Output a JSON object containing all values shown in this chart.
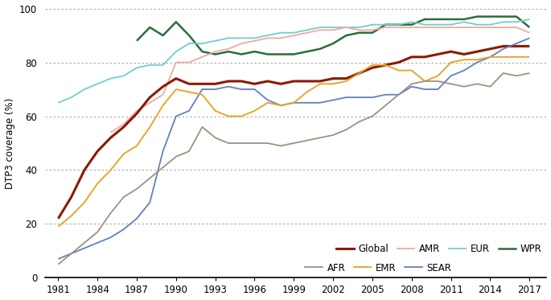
{
  "years": [
    1980,
    1981,
    1982,
    1983,
    1984,
    1985,
    1986,
    1987,
    1988,
    1989,
    1990,
    1991,
    1992,
    1993,
    1994,
    1995,
    1996,
    1997,
    1998,
    1999,
    2000,
    2001,
    2002,
    2003,
    2004,
    2005,
    2006,
    2007,
    2008,
    2009,
    2010,
    2011,
    2012,
    2013,
    2014,
    2015,
    2016,
    2017,
    2018
  ],
  "Global": [
    null,
    22,
    30,
    40,
    47,
    52,
    56,
    61,
    67,
    71,
    74,
    72,
    72,
    72,
    73,
    73,
    72,
    73,
    72,
    73,
    73,
    73,
    74,
    74,
    76,
    78,
    79,
    80,
    82,
    82,
    83,
    84,
    83,
    84,
    85,
    86,
    86,
    86,
    null
  ],
  "AMR": [
    null,
    null,
    null,
    null,
    null,
    54,
    57,
    62,
    65,
    68,
    80,
    80,
    82,
    84,
    85,
    87,
    88,
    89,
    89,
    90,
    91,
    92,
    92,
    93,
    92,
    92,
    93,
    93,
    93,
    93,
    93,
    93,
    93,
    93,
    93,
    93,
    93,
    91,
    null
  ],
  "EUR": [
    null,
    65,
    67,
    70,
    72,
    74,
    75,
    78,
    79,
    79,
    84,
    87,
    87,
    88,
    89,
    89,
    89,
    90,
    91,
    91,
    92,
    93,
    93,
    93,
    93,
    94,
    94,
    94,
    95,
    94,
    94,
    94,
    95,
    94,
    94,
    95,
    95,
    96,
    null
  ],
  "WPR": [
    null,
    null,
    null,
    null,
    null,
    null,
    null,
    88,
    93,
    90,
    95,
    90,
    84,
    83,
    84,
    83,
    84,
    83,
    83,
    83,
    84,
    85,
    87,
    90,
    91,
    91,
    94,
    94,
    94,
    96,
    96,
    96,
    96,
    97,
    97,
    97,
    97,
    93,
    null
  ],
  "AFR": [
    null,
    5,
    9,
    13,
    17,
    24,
    30,
    33,
    37,
    41,
    45,
    47,
    56,
    52,
    50,
    50,
    50,
    50,
    49,
    50,
    51,
    52,
    53,
    55,
    58,
    60,
    64,
    68,
    72,
    73,
    73,
    72,
    71,
    72,
    71,
    76,
    75,
    76,
    null
  ],
  "EMR": [
    null,
    19,
    23,
    28,
    35,
    40,
    46,
    49,
    56,
    64,
    70,
    69,
    68,
    62,
    60,
    60,
    62,
    65,
    64,
    65,
    69,
    72,
    72,
    73,
    76,
    79,
    79,
    77,
    77,
    73,
    75,
    80,
    81,
    81,
    82,
    82,
    82,
    82,
    null
  ],
  "SEAR": [
    null,
    7,
    9,
    11,
    13,
    15,
    18,
    22,
    28,
    47,
    60,
    62,
    70,
    70,
    71,
    70,
    70,
    66,
    64,
    65,
    65,
    65,
    66,
    67,
    67,
    67,
    68,
    68,
    71,
    70,
    70,
    75,
    77,
    80,
    82,
    85,
    87,
    89,
    null
  ],
  "colors": {
    "Global": "#8B1A00",
    "AMR": "#F2A8A0",
    "EUR": "#6ECECE",
    "WPR": "#2A6E3A",
    "AFR": "#A09080",
    "EMR": "#E8A020",
    "SEAR": "#6080C0"
  },
  "linewidths": {
    "Global": 2.2,
    "AMR": 1.3,
    "EUR": 1.3,
    "WPR": 1.8,
    "AFR": 1.3,
    "EMR": 1.3,
    "SEAR": 1.3
  },
  "ylabel": "DTP3 coverage (%)",
  "ylim": [
    0,
    100
  ],
  "yticks": [
    0,
    20,
    40,
    60,
    80,
    100
  ],
  "xticks": [
    1981,
    1984,
    1987,
    1990,
    1993,
    1996,
    1999,
    2002,
    2005,
    2008,
    2011,
    2014,
    2017
  ],
  "xlim_left": 1980,
  "xlim_right": 2018.3,
  "background_color": "#ffffff"
}
